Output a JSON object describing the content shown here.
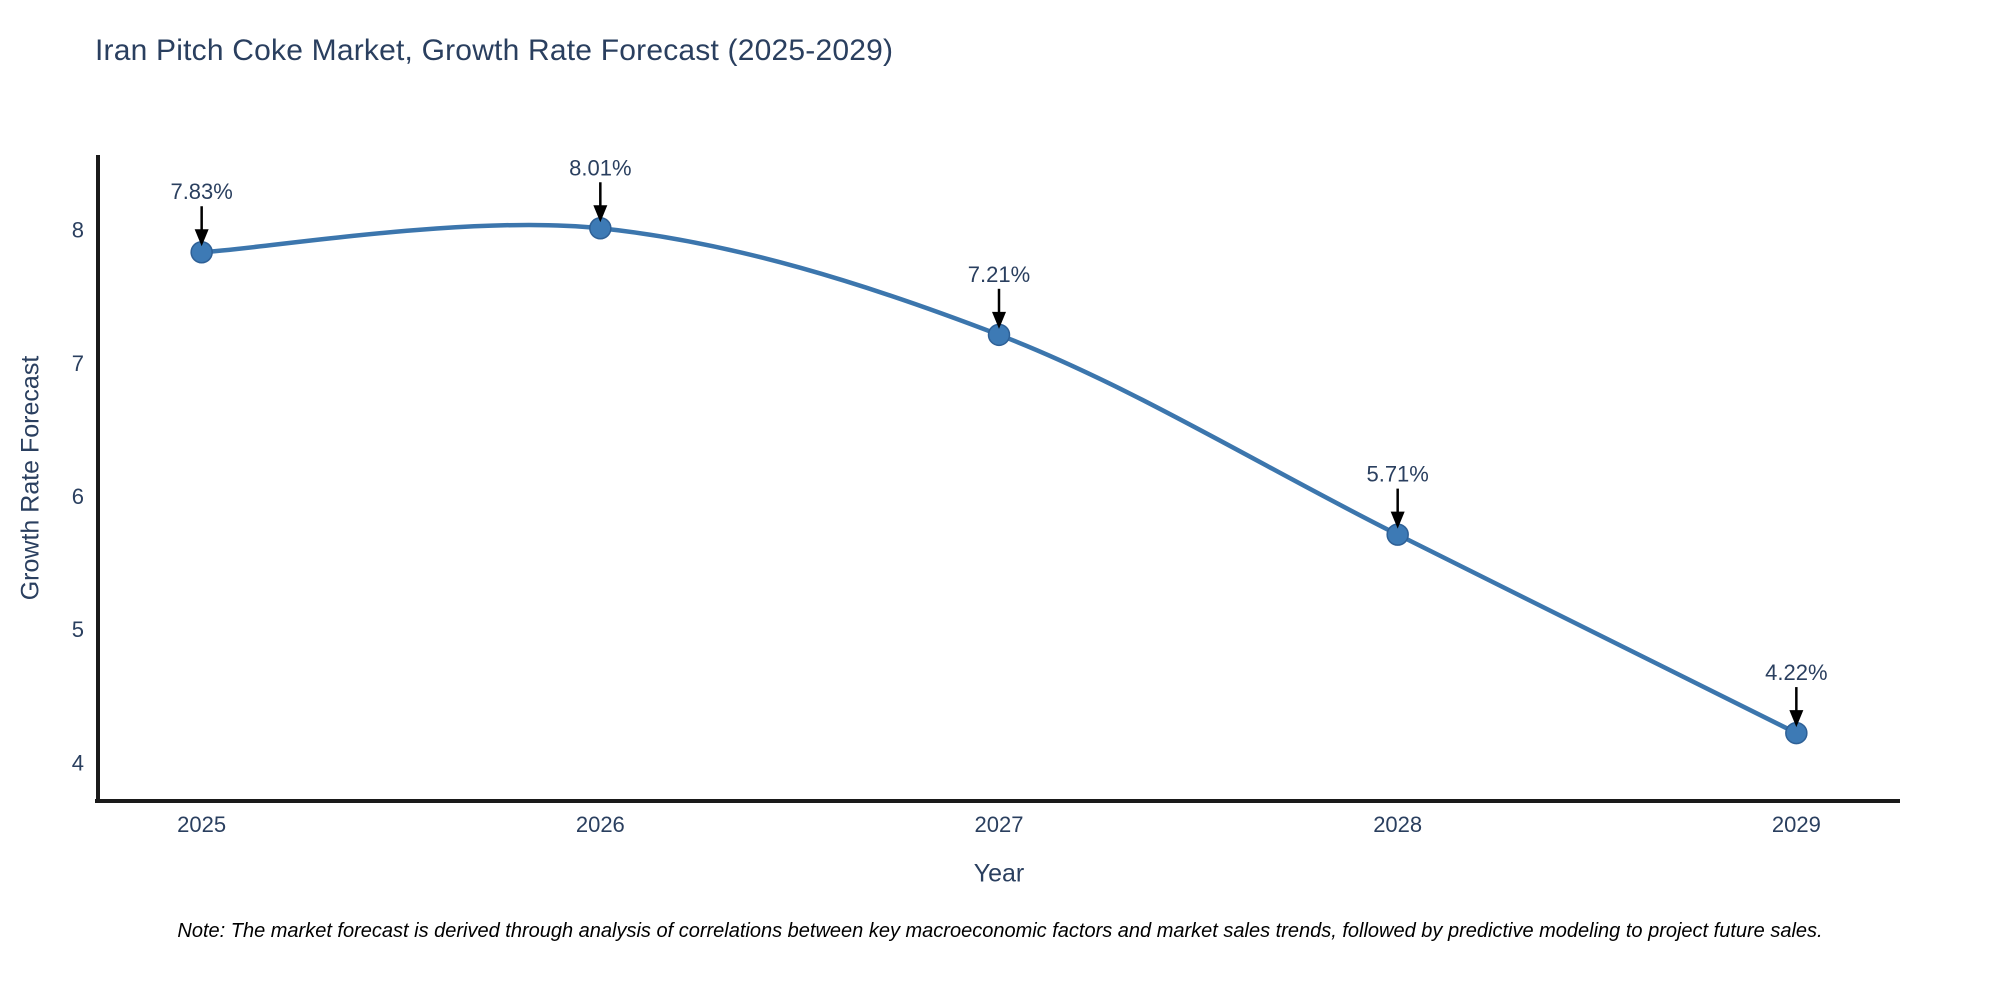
{
  "title": "Iran Pitch Coke Market, Growth Rate Forecast (2025-2029)",
  "x_axis": {
    "label": "Year",
    "ticks": [
      "2025",
      "2026",
      "2027",
      "2028",
      "2029"
    ]
  },
  "y_axis": {
    "label": "Growth Rate Forecast",
    "ticks": [
      4,
      5,
      6,
      7,
      8
    ]
  },
  "note": "Note: The market forecast is derived through analysis of correlations between key macroeconomic factors and market sales trends, followed by predictive modeling to project future sales.",
  "colors": {
    "line": "#3c76ad",
    "marker_fill": "#3d7ab5",
    "marker_edge": "#2e6096",
    "axis": "#1a1a1a",
    "arrow": "#000000",
    "text": "#2a3f5f"
  },
  "chart_data": {
    "type": "line",
    "title": "Iran Pitch Coke Market, Growth Rate Forecast (2025-2029)",
    "xlabel": "Year",
    "ylabel": "Growth Rate Forecast",
    "x": [
      2025,
      2026,
      2027,
      2028,
      2029
    ],
    "values": [
      7.83,
      8.01,
      7.21,
      5.71,
      4.22
    ],
    "point_labels": [
      "7.83%",
      "8.01%",
      "7.21%",
      "5.71%",
      "4.22%"
    ],
    "xlim": [
      2024.74,
      2029.26
    ],
    "ylim": [
      3.71,
      8.56
    ],
    "line_shape": "spline",
    "grid": false,
    "legend": "none"
  }
}
